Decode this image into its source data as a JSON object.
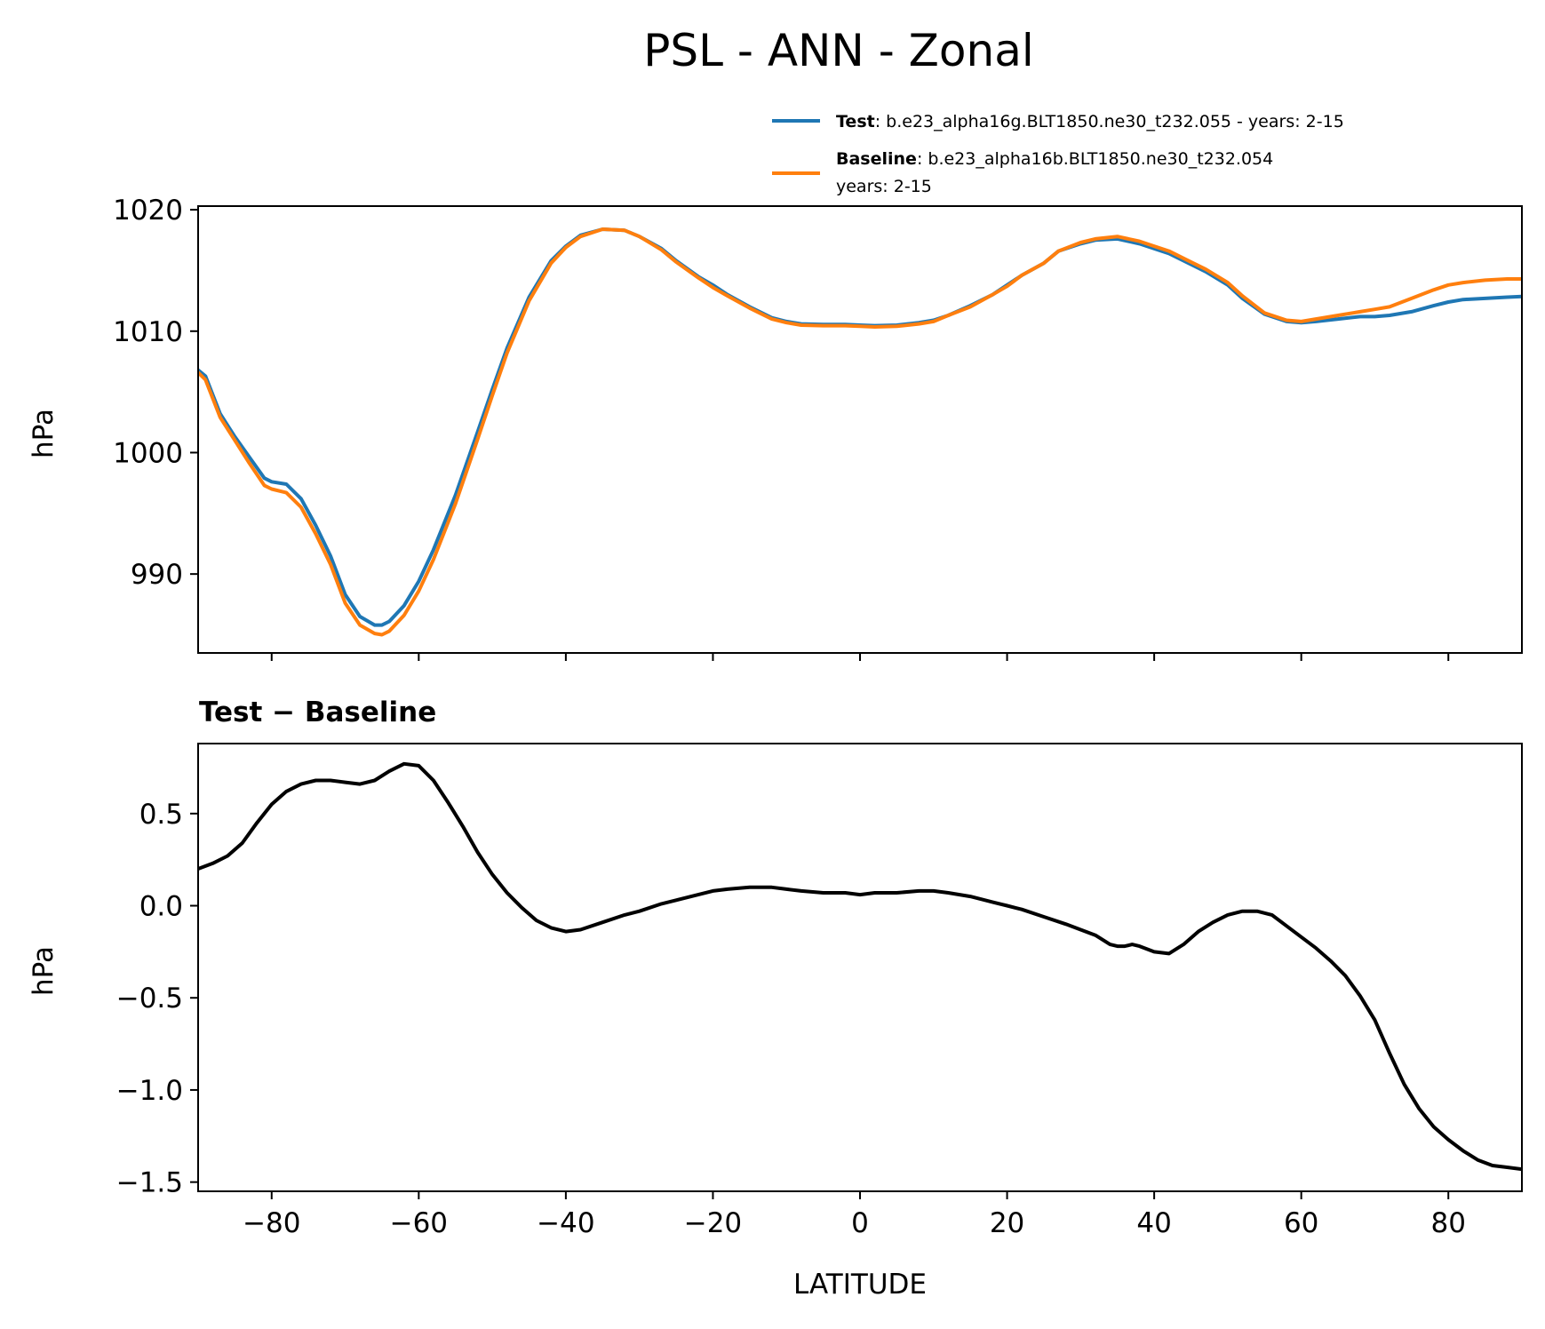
{
  "colors": {
    "test": "#1f77b4",
    "baseline": "#ff7f0e",
    "diff": "#000000"
  },
  "figure": {
    "title": "PSL - ANN - Zonal"
  },
  "legend": {
    "test_name": "Test",
    "test_desc": ": b.e23_alpha16g.BLT1850.ne30_t232.055 - years: 2-15",
    "baseline_name": "Baseline",
    "baseline_desc": ": b.e23_alpha16b.BLT1850.ne30_t232.054",
    "baseline_desc2": "years: 2-15"
  },
  "chart_data": [
    {
      "type": "line",
      "title": "",
      "xlabel": "",
      "ylabel": "hPa",
      "xlim": [
        -90,
        90
      ],
      "ylim": [
        983.5,
        1020.3
      ],
      "xticks": [
        -80,
        -60,
        -40,
        -20,
        0,
        20,
        40,
        60,
        80
      ],
      "yticks": [
        990,
        1000,
        1010,
        1020
      ],
      "ytick_labels": [
        "990",
        "1000",
        "1010",
        "1020"
      ],
      "legend_position": "above-right",
      "series": [
        {
          "name": "Test",
          "x": [
            -90,
            -89,
            -87,
            -85,
            -83,
            -81,
            -80,
            -78,
            -76,
            -74,
            -72,
            -70,
            -68,
            -66,
            -65,
            -64,
            -62,
            -60,
            -58,
            -55,
            -52,
            -50,
            -48,
            -45,
            -42,
            -40,
            -38,
            -35,
            -32,
            -30,
            -27,
            -25,
            -22,
            -20,
            -18,
            -15,
            -12,
            -10,
            -8,
            -5,
            -2,
            0,
            2,
            5,
            8,
            10,
            12,
            15,
            18,
            20,
            22,
            25,
            27,
            30,
            32,
            35,
            38,
            40,
            42,
            45,
            47,
            50,
            52,
            55,
            58,
            60,
            62,
            65,
            68,
            70,
            72,
            75,
            78,
            80,
            82,
            85,
            88,
            90
          ],
          "y": [
            1006.8,
            1006.3,
            1003.2,
            1001.3,
            999.6,
            997.9,
            997.6,
            997.4,
            996.2,
            994.0,
            991.5,
            988.3,
            986.5,
            985.8,
            985.8,
            986.1,
            987.4,
            989.4,
            992.0,
            996.5,
            1001.7,
            1005.2,
            1008.6,
            1012.8,
            1015.8,
            1017.0,
            1017.9,
            1018.4,
            1018.3,
            1017.8,
            1016.8,
            1015.8,
            1014.5,
            1013.8,
            1013.0,
            1012.0,
            1011.1,
            1010.8,
            1010.6,
            1010.55,
            1010.55,
            1010.5,
            1010.45,
            1010.5,
            1010.7,
            1010.9,
            1011.3,
            1012.1,
            1013.0,
            1013.8,
            1014.6,
            1015.6,
            1016.6,
            1017.2,
            1017.5,
            1017.6,
            1017.2,
            1016.8,
            1016.4,
            1015.5,
            1014.9,
            1013.8,
            1012.7,
            1011.4,
            1010.8,
            1010.7,
            1010.8,
            1011.0,
            1011.2,
            1011.2,
            1011.3,
            1011.6,
            1012.1,
            1012.4,
            1012.6,
            1012.7,
            1012.8,
            1012.85
          ]
        },
        {
          "name": "Baseline",
          "x": [
            -90,
            -89,
            -87,
            -85,
            -83,
            -81,
            -80,
            -78,
            -76,
            -74,
            -72,
            -70,
            -68,
            -66,
            -65,
            -64,
            -62,
            -60,
            -58,
            -55,
            -52,
            -50,
            -48,
            -45,
            -42,
            -40,
            -38,
            -35,
            -32,
            -30,
            -27,
            -25,
            -22,
            -20,
            -18,
            -15,
            -12,
            -10,
            -8,
            -5,
            -2,
            0,
            2,
            5,
            8,
            10,
            12,
            15,
            18,
            20,
            22,
            25,
            27,
            30,
            32,
            35,
            38,
            40,
            42,
            45,
            47,
            50,
            52,
            55,
            58,
            60,
            62,
            65,
            68,
            70,
            72,
            75,
            78,
            80,
            82,
            85,
            88,
            90
          ],
          "y": [
            1006.6,
            1006.0,
            1002.9,
            1001.0,
            999.1,
            997.3,
            997.0,
            996.7,
            995.5,
            993.3,
            990.8,
            987.6,
            985.8,
            985.1,
            985.0,
            985.3,
            986.6,
            988.6,
            991.2,
            995.8,
            1001.1,
            1004.7,
            1008.2,
            1012.5,
            1015.6,
            1016.9,
            1017.8,
            1018.4,
            1018.3,
            1017.8,
            1016.7,
            1015.7,
            1014.4,
            1013.6,
            1012.9,
            1011.9,
            1011.0,
            1010.7,
            1010.5,
            1010.45,
            1010.45,
            1010.4,
            1010.35,
            1010.4,
            1010.6,
            1010.8,
            1011.3,
            1012.0,
            1013.0,
            1013.7,
            1014.6,
            1015.6,
            1016.6,
            1017.3,
            1017.6,
            1017.8,
            1017.4,
            1017.0,
            1016.6,
            1015.7,
            1015.1,
            1014.0,
            1012.9,
            1011.5,
            1010.9,
            1010.8,
            1011.0,
            1011.3,
            1011.6,
            1011.8,
            1012.0,
            1012.7,
            1013.4,
            1013.8,
            1014.0,
            1014.2,
            1014.3,
            1014.3
          ]
        }
      ]
    },
    {
      "type": "line",
      "title": "Test − Baseline",
      "xlabel": "LATITUDE",
      "ylabel": "hPa",
      "xlim": [
        -90,
        90
      ],
      "ylim": [
        -1.55,
        0.88
      ],
      "xticks": [
        -80,
        -60,
        -40,
        -20,
        0,
        20,
        40,
        60,
        80
      ],
      "xtick_labels": [
        "−80",
        "−60",
        "−40",
        "−20",
        "0",
        "20",
        "40",
        "60",
        "80"
      ],
      "yticks": [
        -1.5,
        -1.0,
        -0.5,
        0.0,
        0.5
      ],
      "ytick_labels": [
        "−1.5",
        "−1.0",
        "−0.5",
        "0.0",
        "0.5"
      ],
      "series": [
        {
          "name": "",
          "x": [
            -90,
            -88,
            -86,
            -84,
            -82,
            -80,
            -78,
            -76,
            -74,
            -72,
            -70,
            -68,
            -66,
            -64,
            -62,
            -60,
            -58,
            -56,
            -54,
            -52,
            -50,
            -48,
            -46,
            -44,
            -42,
            -40,
            -38,
            -35,
            -32,
            -30,
            -27,
            -25,
            -22,
            -20,
            -18,
            -15,
            -12,
            -10,
            -8,
            -5,
            -2,
            0,
            2,
            5,
            8,
            10,
            12,
            15,
            18,
            20,
            22,
            25,
            28,
            30,
            32,
            34,
            35,
            36,
            37,
            38,
            40,
            42,
            44,
            46,
            48,
            50,
            52,
            54,
            56,
            58,
            60,
            62,
            64,
            66,
            68,
            70,
            72,
            74,
            76,
            78,
            80,
            82,
            84,
            86,
            88,
            90
          ],
          "y": [
            0.2,
            0.23,
            0.27,
            0.34,
            0.45,
            0.55,
            0.62,
            0.66,
            0.68,
            0.68,
            0.67,
            0.66,
            0.68,
            0.73,
            0.77,
            0.76,
            0.68,
            0.56,
            0.43,
            0.29,
            0.17,
            0.07,
            -0.01,
            -0.08,
            -0.12,
            -0.14,
            -0.13,
            -0.09,
            -0.05,
            -0.03,
            0.01,
            0.03,
            0.06,
            0.08,
            0.09,
            0.1,
            0.1,
            0.09,
            0.08,
            0.07,
            0.07,
            0.06,
            0.07,
            0.07,
            0.08,
            0.08,
            0.07,
            0.05,
            0.02,
            0.0,
            -0.02,
            -0.06,
            -0.1,
            -0.13,
            -0.16,
            -0.21,
            -0.22,
            -0.22,
            -0.21,
            -0.22,
            -0.25,
            -0.26,
            -0.21,
            -0.14,
            -0.09,
            -0.05,
            -0.03,
            -0.03,
            -0.05,
            -0.11,
            -0.17,
            -0.23,
            -0.3,
            -0.38,
            -0.49,
            -0.62,
            -0.8,
            -0.97,
            -1.1,
            -1.2,
            -1.27,
            -1.33,
            -1.38,
            -1.41,
            -1.42,
            -1.43
          ]
        }
      ]
    }
  ]
}
